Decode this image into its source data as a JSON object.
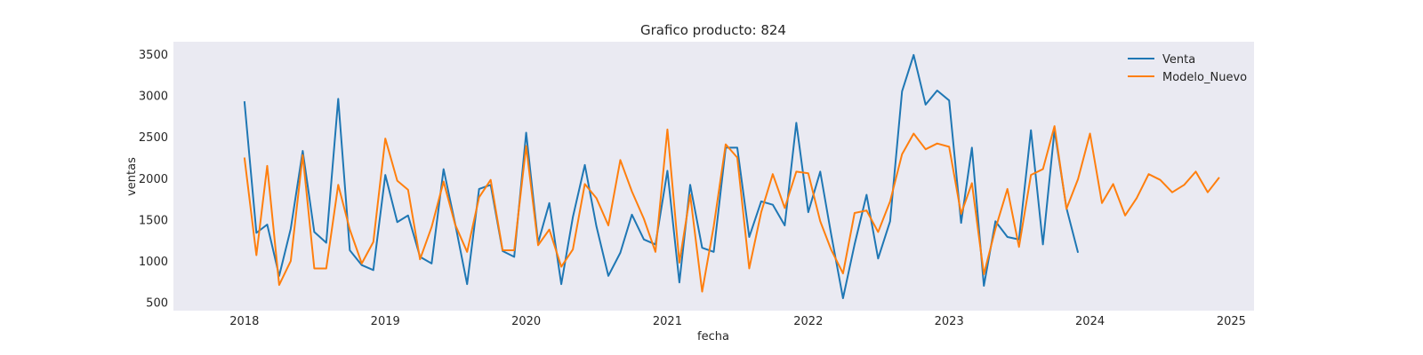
{
  "chart_data": {
    "type": "line",
    "title": "Grafico producto: 824",
    "xlabel": "fecha",
    "ylabel": "ventas",
    "grid": false,
    "legend_position": "top-right",
    "xlim": [
      "2017-07-01",
      "2025-03-01"
    ],
    "ylim": [
      400,
      3650
    ],
    "yticks": [
      500,
      1000,
      1500,
      2000,
      2500,
      3000,
      3500
    ],
    "xticks": [
      "2018-01-01",
      "2019-01-01",
      "2020-01-01",
      "2021-01-01",
      "2022-01-01",
      "2023-01-01",
      "2024-01-01",
      "2025-01-01"
    ],
    "xtick_labels": [
      "2018",
      "2019",
      "2020",
      "2021",
      "2022",
      "2023",
      "2024",
      "2025"
    ],
    "colors": {
      "plot_background": "#eaeaf2",
      "Venta": "#1f77b4",
      "Modelo_Nuevo": "#ff7f0e"
    },
    "series": [
      {
        "name": "Venta",
        "color": "#1f77b4",
        "x": [
          "2018-01",
          "2018-02",
          "2018-03",
          "2018-04",
          "2018-05",
          "2018-06",
          "2018-07",
          "2018-08",
          "2018-09",
          "2018-10",
          "2018-11",
          "2018-12",
          "2019-01",
          "2019-02",
          "2019-03",
          "2019-04",
          "2019-05",
          "2019-06",
          "2019-07",
          "2019-08",
          "2019-09",
          "2019-10",
          "2019-11",
          "2019-12",
          "2020-01",
          "2020-02",
          "2020-03",
          "2020-04",
          "2020-05",
          "2020-06",
          "2020-07",
          "2020-08",
          "2020-09",
          "2020-10",
          "2020-11",
          "2020-12",
          "2021-01",
          "2021-02",
          "2021-03",
          "2021-04",
          "2021-05",
          "2021-06",
          "2021-07",
          "2021-08",
          "2021-09",
          "2021-10",
          "2021-11",
          "2021-12",
          "2022-01",
          "2022-02",
          "2022-03",
          "2022-04",
          "2022-05",
          "2022-06",
          "2022-07",
          "2022-08",
          "2022-09",
          "2022-10",
          "2022-11",
          "2022-12",
          "2023-01",
          "2023-02",
          "2023-03",
          "2023-04",
          "2023-05",
          "2023-06",
          "2023-07",
          "2023-08",
          "2023-09",
          "2023-10",
          "2023-11",
          "2023-12"
        ],
        "values": [
          2930,
          1340,
          1440,
          820,
          1390,
          2330,
          1350,
          1220,
          2960,
          1130,
          950,
          890,
          2040,
          1470,
          1550,
          1050,
          970,
          2110,
          1450,
          720,
          1870,
          1920,
          1120,
          1050,
          2550,
          1220,
          1700,
          720,
          1530,
          2160,
          1420,
          820,
          1100,
          1560,
          1260,
          1200,
          2090,
          740,
          1920,
          1160,
          1110,
          2370,
          2370,
          1290,
          1720,
          1680,
          1430,
          2670,
          1590,
          2080,
          1330,
          550,
          1200,
          1800,
          1030,
          1480,
          3050,
          3490,
          2890,
          3060,
          2940,
          1460,
          2370,
          700,
          1480,
          1290,
          1260,
          2580,
          1200,
          2580,
          1640,
          1100
        ]
      },
      {
        "name": "Modelo_Nuevo",
        "color": "#ff7f0e",
        "x": [
          "2018-01",
          "2018-02",
          "2018-03",
          "2018-04",
          "2018-05",
          "2018-06",
          "2018-07",
          "2018-08",
          "2018-09",
          "2018-10",
          "2018-11",
          "2018-12",
          "2019-01",
          "2019-02",
          "2019-03",
          "2019-04",
          "2019-05",
          "2019-06",
          "2019-07",
          "2019-08",
          "2019-09",
          "2019-10",
          "2019-11",
          "2019-12",
          "2020-01",
          "2020-02",
          "2020-03",
          "2020-04",
          "2020-05",
          "2020-06",
          "2020-07",
          "2020-08",
          "2020-09",
          "2020-10",
          "2020-11",
          "2020-12",
          "2021-01",
          "2021-02",
          "2021-03",
          "2021-04",
          "2021-05",
          "2021-06",
          "2021-07",
          "2021-08",
          "2021-09",
          "2021-10",
          "2021-11",
          "2021-12",
          "2022-01",
          "2022-02",
          "2022-03",
          "2022-04",
          "2022-05",
          "2022-06",
          "2022-07",
          "2022-08",
          "2022-09",
          "2022-10",
          "2022-11",
          "2022-12",
          "2023-01",
          "2023-02",
          "2023-03",
          "2023-04",
          "2023-05",
          "2023-06",
          "2023-07",
          "2023-08",
          "2023-09",
          "2023-10",
          "2023-11",
          "2023-12",
          "2024-01",
          "2024-02",
          "2024-03",
          "2024-04",
          "2024-05",
          "2024-06",
          "2024-07",
          "2024-08",
          "2024-09",
          "2024-10",
          "2024-11",
          "2024-12"
        ],
        "values": [
          2250,
          1070,
          2150,
          710,
          1000,
          2280,
          910,
          910,
          1920,
          1380,
          970,
          1230,
          2480,
          1970,
          1860,
          1020,
          1410,
          1960,
          1440,
          1110,
          1770,
          1980,
          1130,
          1130,
          2390,
          1190,
          1380,
          930,
          1140,
          1930,
          1760,
          1430,
          2220,
          1840,
          1510,
          1110,
          2590,
          980,
          1800,
          630,
          1420,
          2410,
          2250,
          910,
          1590,
          2050,
          1640,
          2080,
          2060,
          1480,
          1140,
          850,
          1580,
          1610,
          1350,
          1720,
          2290,
          2540,
          2350,
          2420,
          2380,
          1570,
          1940,
          840,
          1390,
          1870,
          1170,
          2040,
          2110,
          2630,
          1630,
          1990,
          2540,
          1700,
          1930,
          1550,
          1760,
          2050,
          1980,
          1830,
          1920,
          2080,
          1830,
          2010
        ]
      }
    ]
  }
}
